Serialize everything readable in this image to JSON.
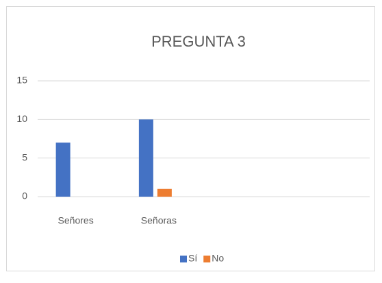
{
  "chart_data": {
    "type": "bar",
    "title": "PREGUNTA 3",
    "categories": [
      "Señores",
      "Señoras",
      null,
      null
    ],
    "series": [
      {
        "name": "Sí",
        "color": "#4472c4",
        "values": [
          7,
          10,
          null,
          null
        ]
      },
      {
        "name": "No",
        "color": "#ed7d31",
        "values": [
          0,
          1,
          null,
          null
        ]
      }
    ],
    "ylim": [
      0,
      15
    ],
    "yticks": [
      0,
      5,
      10,
      15
    ],
    "grid": true,
    "legend": "bottom"
  }
}
